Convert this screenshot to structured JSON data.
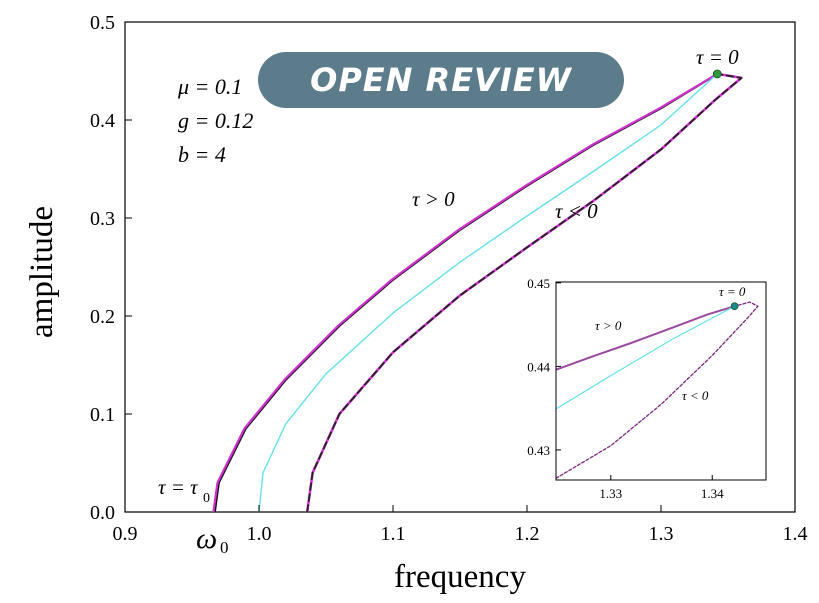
{
  "chart_data": [
    {
      "type": "line",
      "xlabel": "frequency",
      "ylabel": "amplitude",
      "xlim": [
        0.9,
        1.4
      ],
      "ylim": [
        0.0,
        0.5
      ],
      "xticks": [
        "0.9",
        "1.0",
        "1.1",
        "1.2",
        "1.3",
        "1.4"
      ],
      "yticks": [
        "0.0",
        "0.1",
        "0.2",
        "0.3",
        "0.4",
        "0.5"
      ],
      "parameters": [
        "μ = 0.1",
        "g = 0.12",
        "b = 4"
      ],
      "annotations": {
        "tau_zero": "τ = 0",
        "tau_pos": "τ > 0",
        "tau_neg": "τ < 0",
        "tau_zero_sym": "τ = τ",
        "tau_zero_sub": "0",
        "omega_sym": "ω",
        "omega_sub": "0"
      },
      "series": [
        {
          "color": "#1a0a1a",
          "style": "solid",
          "x": [
            0.967,
            0.97,
            0.99,
            1.02,
            1.06,
            1.1,
            1.15,
            1.2,
            1.25,
            1.3,
            1.342
          ],
          "y": [
            0.0,
            0.03,
            0.085,
            0.135,
            0.19,
            0.237,
            0.288,
            0.333,
            0.375,
            0.412,
            0.447
          ]
        },
        {
          "color": "#cc33cc",
          "style": "solid",
          "x": [
            0.966,
            0.969,
            0.989,
            1.019,
            1.059,
            1.099,
            1.149,
            1.199,
            1.249,
            1.299,
            1.342
          ],
          "y": [
            0.0,
            0.03,
            0.085,
            0.135,
            0.19,
            0.237,
            0.288,
            0.333,
            0.375,
            0.412,
            0.447
          ]
        },
        {
          "color": "#66e0e8",
          "style": "solid",
          "x": [
            1.0,
            1.003,
            1.02,
            1.05,
            1.1,
            1.15,
            1.2,
            1.25,
            1.3,
            1.342
          ],
          "y": [
            0.0,
            0.04,
            0.09,
            0.141,
            0.203,
            0.255,
            0.302,
            0.348,
            0.395,
            0.447
          ]
        },
        {
          "color": "#dd33dd",
          "style": "solid",
          "x": [
            1.036,
            1.04,
            1.06,
            1.1,
            1.15,
            1.2,
            1.25,
            1.3,
            1.34,
            1.36,
            1.342
          ],
          "y": [
            0.0,
            0.04,
            0.1,
            0.163,
            0.221,
            0.27,
            0.318,
            0.37,
            0.42,
            0.443,
            0.447
          ]
        },
        {
          "color": "#222222",
          "style": "dashed",
          "x": [
            1.036,
            1.04,
            1.06,
            1.1,
            1.15,
            1.2,
            1.25,
            1.3,
            1.34,
            1.36,
            1.342
          ],
          "y": [
            0.0,
            0.04,
            0.1,
            0.163,
            0.221,
            0.27,
            0.318,
            0.37,
            0.42,
            0.443,
            0.447
          ]
        }
      ],
      "points": [
        {
          "x": 1.342,
          "y": 0.447,
          "color": "#2a9a3a"
        }
      ]
    },
    {
      "type": "line",
      "xlim": [
        1.3246,
        1.3453
      ],
      "ylim": [
        0.4264,
        0.4501
      ],
      "xticks": [
        "1.33",
        "1.34"
      ],
      "yticks": [
        "0.43",
        "0.44",
        "0.45"
      ],
      "annotations": {
        "tau_zero": "τ = 0",
        "tau_pos": "τ > 0",
        "tau_neg": "τ < 0"
      },
      "series": [
        {
          "color": "#9a4aa0",
          "style": "solid",
          "x": [
            1.3246,
            1.328,
            1.332,
            1.336,
            1.3395,
            1.3422
          ],
          "y": [
            0.4396,
            0.4411,
            0.4428,
            0.4446,
            0.4462,
            0.4472
          ]
        },
        {
          "color": "#66e0e8",
          "style": "solid",
          "x": [
            1.3246,
            1.33,
            1.336,
            1.3422
          ],
          "y": [
            0.4349,
            0.4389,
            0.4432,
            0.4472
          ]
        },
        {
          "color": "#7a2a7a",
          "style": "dashed",
          "x": [
            1.3246,
            1.33,
            1.335,
            1.34,
            1.3435,
            1.3445,
            1.3437,
            1.3422
          ],
          "y": [
            0.4266,
            0.4305,
            0.4355,
            0.4413,
            0.4458,
            0.4472,
            0.4477,
            0.4472
          ]
        }
      ],
      "points": [
        {
          "x": 1.3422,
          "y": 0.4472,
          "color": "#1f8a8a"
        }
      ]
    }
  ],
  "watermark": "OPEN REVIEW"
}
